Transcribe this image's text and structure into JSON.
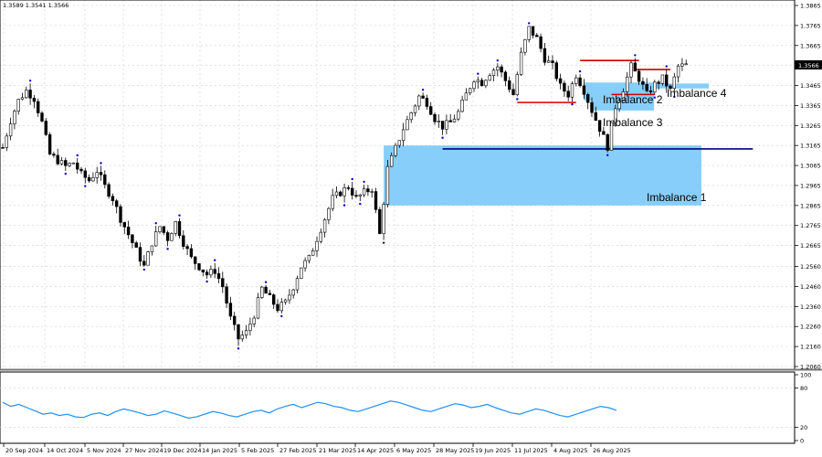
{
  "header": {
    "ohlc": "1.3589 1.3541 1.3566"
  },
  "price_badge": "1.3566",
  "chart_data": {
    "type": "candlestick",
    "symbol_quote": "1.3589 1.3541 1.3566",
    "y_ticks": [
      "1.3865",
      "1.3765",
      "1.3665",
      "1.3566",
      "1.3465",
      "1.3365",
      "1.3265",
      "1.3165",
      "1.3065",
      "1.2965",
      "1.2865",
      "1.2765",
      "1.2665",
      "1.2560",
      "1.2460",
      "1.2360",
      "1.2260",
      "1.2160",
      "1.2060"
    ],
    "y_range": [
      1.2025,
      1.3915
    ],
    "x_labels": [
      "20 Sep 2024",
      "14 Oct 2024",
      "5 Nov 2024",
      "27 Nov 2024",
      "19 Dec 2024",
      "14 Jan 2025",
      "5 Feb 2025",
      "27 Feb 2025",
      "21 Mar 2025",
      "14 Apr 2025",
      "6 May 2025",
      "28 May 2025",
      "19 Jun 2025",
      "11 Jul 2025",
      "4 Aug 2025",
      "26 Aug 2025"
    ],
    "price_path": [
      [
        0,
        1.3155
      ],
      [
        2,
        1.329
      ],
      [
        4,
        1.339
      ],
      [
        6,
        1.344
      ],
      [
        8,
        1.34
      ],
      [
        10,
        1.328
      ],
      [
        12,
        1.312
      ],
      [
        14,
        1.309
      ],
      [
        16,
        1.306
      ],
      [
        18,
        1.308
      ],
      [
        20,
        1.302
      ],
      [
        22,
        1.299
      ],
      [
        24,
        1.304
      ],
      [
        26,
        1.296
      ],
      [
        28,
        1.29
      ],
      [
        30,
        1.28
      ],
      [
        32,
        1.272
      ],
      [
        34,
        1.264
      ],
      [
        36,
        1.256
      ],
      [
        38,
        1.268
      ],
      [
        40,
        1.276
      ],
      [
        42,
        1.27
      ],
      [
        44,
        1.278
      ],
      [
        46,
        1.268
      ],
      [
        48,
        1.26
      ],
      [
        50,
        1.256
      ],
      [
        52,
        1.252
      ],
      [
        54,
        1.254
      ],
      [
        56,
        1.246
      ],
      [
        58,
        1.23
      ],
      [
        60,
        1.22
      ],
      [
        62,
        1.223
      ],
      [
        64,
        1.232
      ],
      [
        66,
        1.245
      ],
      [
        68,
        1.24
      ],
      [
        70,
        1.235
      ],
      [
        72,
        1.238
      ],
      [
        74,
        1.246
      ],
      [
        76,
        1.256
      ],
      [
        78,
        1.26
      ],
      [
        80,
        1.27
      ],
      [
        82,
        1.28
      ],
      [
        84,
        1.29
      ],
      [
        86,
        1.293
      ],
      [
        88,
        1.296
      ],
      [
        90,
        1.29
      ],
      [
        92,
        1.293
      ],
      [
        94,
        1.295
      ],
      [
        96,
        1.272
      ],
      [
        98,
        1.305
      ],
      [
        100,
        1.315
      ],
      [
        102,
        1.325
      ],
      [
        104,
        1.333
      ],
      [
        106,
        1.341
      ],
      [
        108,
        1.338
      ],
      [
        110,
        1.33
      ],
      [
        112,
        1.326
      ],
      [
        114,
        1.328
      ],
      [
        116,
        1.333
      ],
      [
        118,
        1.342
      ],
      [
        120,
        1.35
      ],
      [
        122,
        1.348
      ],
      [
        124,
        1.353
      ],
      [
        126,
        1.356
      ],
      [
        128,
        1.349
      ],
      [
        130,
        1.342
      ],
      [
        132,
        1.362
      ],
      [
        134,
        1.375
      ],
      [
        136,
        1.37
      ],
      [
        138,
        1.36
      ],
      [
        140,
        1.356
      ],
      [
        142,
        1.346
      ],
      [
        144,
        1.342
      ],
      [
        146,
        1.352
      ],
      [
        148,
        1.344
      ],
      [
        150,
        1.334
      ],
      [
        152,
        1.325
      ],
      [
        154,
        1.316
      ],
      [
        156,
        1.336
      ],
      [
        158,
        1.345
      ],
      [
        160,
        1.356
      ],
      [
        162,
        1.35
      ],
      [
        164,
        1.342
      ],
      [
        166,
        1.347
      ],
      [
        168,
        1.35
      ],
      [
        170,
        1.344
      ],
      [
        172,
        1.356
      ],
      [
        174,
        1.3566
      ]
    ],
    "n_bars": 175,
    "imbalances": [
      {
        "label": "Imbalance 1",
        "y_top": 1.3165,
        "y_bottom": 1.2865,
        "start_bar": 97
      },
      {
        "label": "Imbalance 2",
        "y_top": 1.348,
        "y_bottom": 1.339,
        "start_bar": 148
      },
      {
        "label": "Imbalance 3",
        "y_top": 1.339,
        "y_bottom": 1.334,
        "start_bar": 150
      },
      {
        "label": "Imbalance 4",
        "y_top": 1.3475,
        "y_bottom": 1.345,
        "start_bar": 159
      }
    ],
    "levels": [
      {
        "y": 1.3148,
        "color": "#000080",
        "from_bar": 112,
        "to_bar": 191
      },
      {
        "y": 1.359,
        "color": "#cc0000",
        "from_bar": 147,
        "to_bar": 162
      },
      {
        "y": 1.3545,
        "color": "#cc0000",
        "from_bar": 161,
        "to_bar": 170
      },
      {
        "y": 1.338,
        "color": "#cc0000",
        "from_bar": 131,
        "to_bar": 146
      },
      {
        "y": 1.342,
        "color": "#cc0000",
        "from_bar": 155,
        "to_bar": 166
      }
    ],
    "oscillator": {
      "y_ticks": [
        "100",
        "80",
        "20",
        "0"
      ],
      "values": [
        58,
        52,
        55,
        50,
        45,
        40,
        42,
        38,
        40,
        36,
        35,
        40,
        42,
        38,
        44,
        48,
        45,
        42,
        38,
        40,
        45,
        42,
        38,
        34,
        36,
        40,
        44,
        42,
        38,
        36,
        40,
        44,
        46,
        42,
        48,
        52,
        55,
        50,
        54,
        58,
        56,
        52,
        50,
        46,
        44,
        48,
        52,
        56,
        60,
        58,
        54,
        50,
        46,
        44,
        48,
        52,
        56,
        54,
        50,
        52,
        55,
        50,
        46,
        42,
        40,
        44,
        48,
        46,
        42,
        38,
        36,
        40,
        44,
        48,
        52,
        50,
        46
      ]
    }
  },
  "colors": {
    "bull": "#000000",
    "bear": "#000000",
    "imbalance": "#87CEFA",
    "level_blue": "#000080",
    "level_red": "#cc0000",
    "osc": "#1E90FF",
    "grid": "#d0d0d0",
    "fractal": "#0000cc"
  }
}
